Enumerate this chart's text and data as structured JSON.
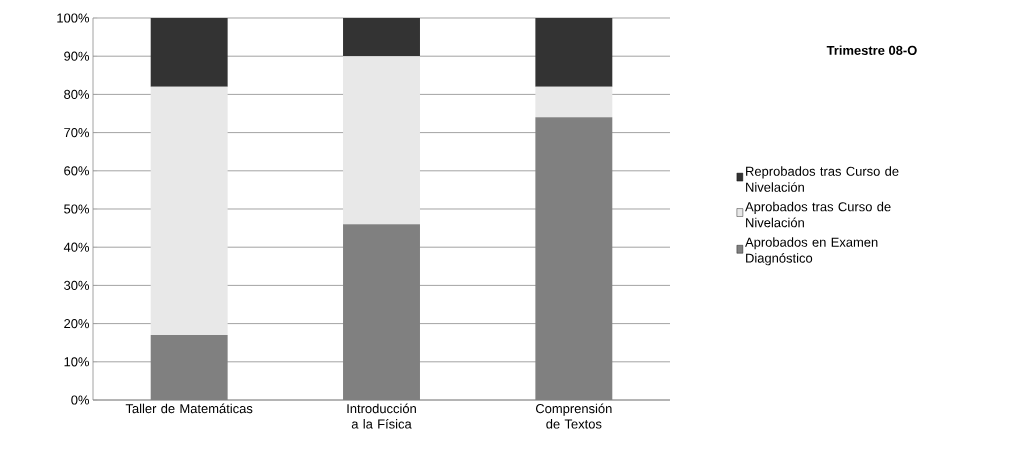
{
  "chart_data": {
    "type": "bar",
    "stacked": true,
    "title": "Trimestre 08-O",
    "categories": [
      "Taller de Matemáticas",
      "Introducción a la Física",
      "Comprensión de Textos"
    ],
    "series": [
      {
        "name": "Aprobados en Examen Diagnóstico",
        "color": "#808080",
        "values": [
          17,
          46,
          74
        ]
      },
      {
        "name": "Aprobados tras Curso de Nivelación",
        "color": "#e8e8e8",
        "values": [
          65,
          44,
          8
        ]
      },
      {
        "name": "Reprobados tras Curso de Nivelación",
        "color": "#333333",
        "values": [
          18,
          10,
          18
        ]
      }
    ],
    "ylim": [
      0,
      100
    ],
    "yticks": [
      {
        "value": 0,
        "label": "0%"
      },
      {
        "value": 10,
        "label": "10%"
      },
      {
        "value": 20,
        "label": "20%"
      },
      {
        "value": 30,
        "label": "30%"
      },
      {
        "value": 40,
        "label": "40%"
      },
      {
        "value": 50,
        "label": "50%"
      },
      {
        "value": 60,
        "label": "60%"
      },
      {
        "value": 70,
        "label": "70%"
      },
      {
        "value": 80,
        "label": "80%"
      },
      {
        "value": 90,
        "label": "90%"
      },
      {
        "value": 100,
        "label": "100%"
      }
    ],
    "grid": "y",
    "legend": "right"
  }
}
